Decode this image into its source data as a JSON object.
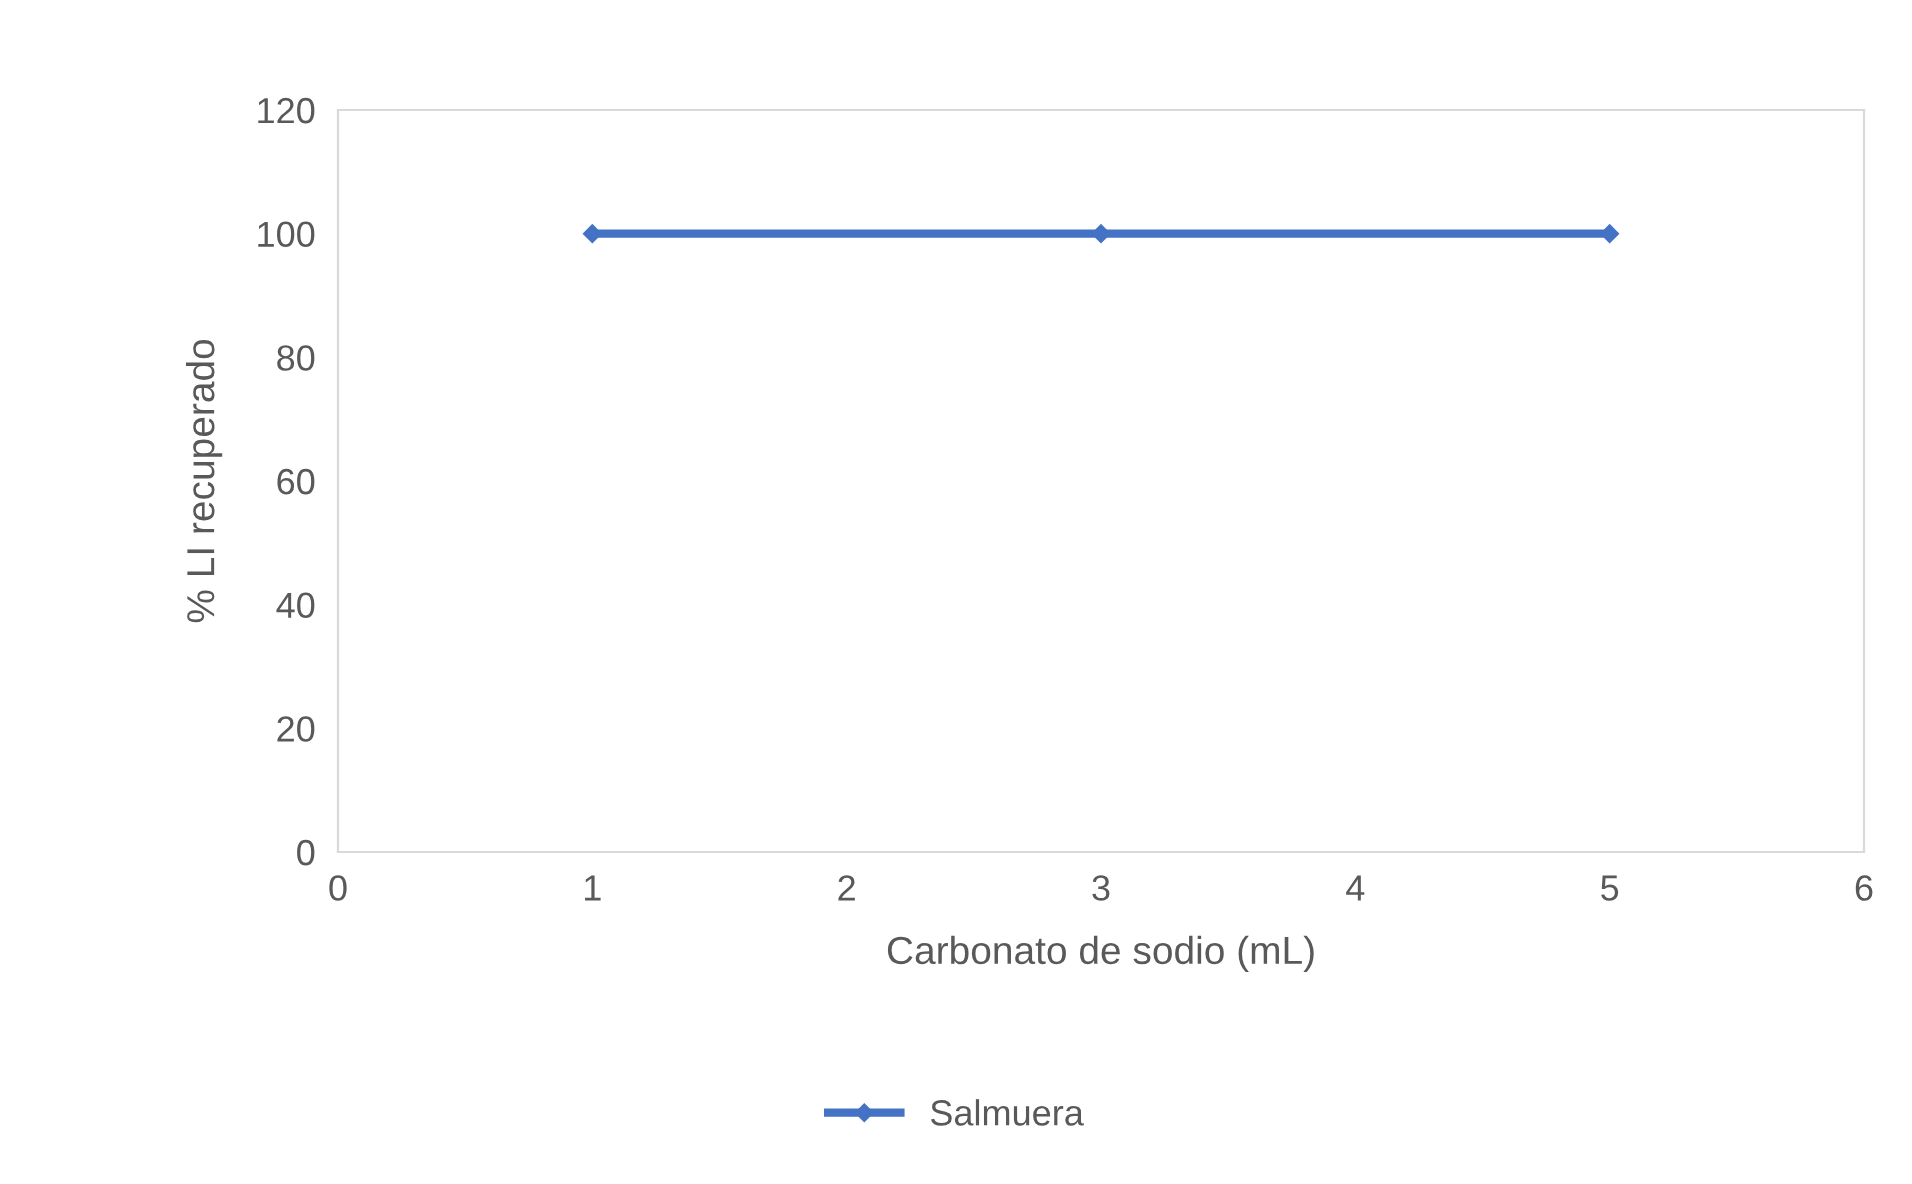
{
  "chart_data": {
    "type": "line",
    "xlabel": "Carbonato de sodio (mL)",
    "ylabel": "% LI recuperado",
    "x": [
      1,
      3,
      5
    ],
    "series": [
      {
        "name": "Salmuera",
        "color": "#4472c4",
        "values": [
          100,
          100,
          100
        ]
      }
    ],
    "xlim": [
      0,
      6
    ],
    "xticks": [
      0,
      1,
      2,
      3,
      4,
      5,
      6
    ],
    "ylim": [
      0,
      120
    ],
    "yticks": [
      0,
      20,
      40,
      60,
      80,
      100,
      120
    ],
    "grid": false,
    "legend": "bottom",
    "marker": "diamond",
    "line_style": "solid"
  }
}
